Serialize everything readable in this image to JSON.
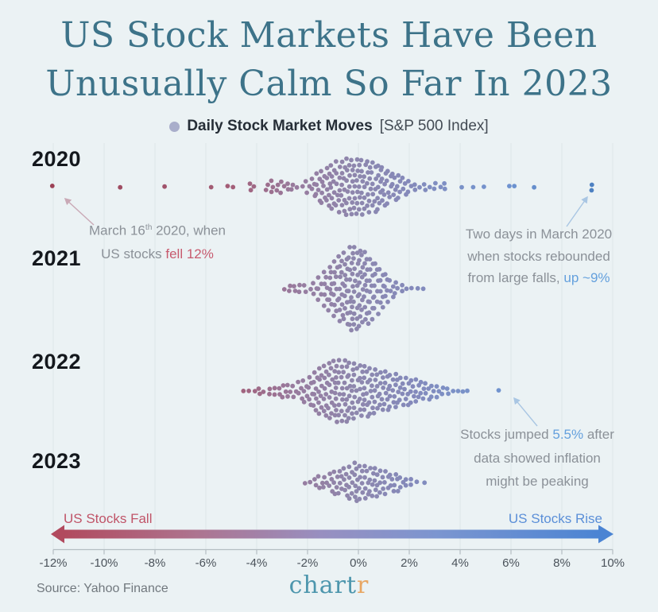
{
  "title": {
    "line1": "US Stock Markets Have Been",
    "line2": "Unusually Calm So Far In 2023",
    "color": "#3d7389"
  },
  "legend": {
    "label_bold": "Daily Stock Market Moves",
    "label_detail": "[S&P 500 Index]",
    "dot_color": "#a9aecb"
  },
  "annotations": {
    "march": {
      "line1_pre": "March 16",
      "line1_sup": "th",
      "line1_post": " 2020, when",
      "line2_pre": "US stocks ",
      "line2_em": "fell 12%",
      "em_color": "#c75a6e",
      "arrow_color": "#c9a9b6"
    },
    "rebound": {
      "line1": "Two days in March 2020",
      "line2": "when stocks rebounded",
      "line3_pre": "from large falls, ",
      "line3_em": "up ~9%",
      "em_color": "#64a0dd",
      "arrow_color": "#a9c6e3"
    },
    "inflation": {
      "line1_pre": "Stocks jumped ",
      "line1_em": "5.5%",
      "line1_post": " after",
      "line2": "data showed inflation",
      "line3": "might be peaking",
      "em_color": "#64a0dd",
      "arrow_color": "#a9c6e3"
    }
  },
  "flow": {
    "fall_label": "US Stocks Fall",
    "fall_color": "#c05468",
    "rise_label": "US Stocks Rise",
    "rise_color": "#5b8fd8",
    "gradient_stops": [
      [
        0,
        "#b14a5e"
      ],
      [
        0.25,
        "#ad7490"
      ],
      [
        0.48,
        "#988fc0"
      ],
      [
        0.7,
        "#7b95d0"
      ],
      [
        1,
        "#4b84d3"
      ]
    ]
  },
  "footer": {
    "source": "Source: Yahoo Finance",
    "logo_main": "chart",
    "logo_main_color": "#4d96ad",
    "logo_accent": "r",
    "logo_accent_color": "#e8a662"
  },
  "chart_data": {
    "type": "scatter",
    "variant": "beeswarm",
    "title": "Daily Stock Market Moves [S&P 500 Index]",
    "x_axis": {
      "min": -12,
      "max": 10,
      "tick_step": 2,
      "grid": true,
      "tick_values": [
        -12,
        -10,
        -8,
        -6,
        -4,
        -2,
        0,
        2,
        4,
        6,
        8,
        10
      ],
      "tick_labels": [
        "-12%",
        "-10%",
        "-8%",
        "-6%",
        "-4%",
        "-2%",
        "0%",
        "2%",
        "4%",
        "6%",
        "8%",
        "10%"
      ]
    },
    "color_scale_stops": [
      [
        -12,
        "#9c4156"
      ],
      [
        -5,
        "#a35e77"
      ],
      [
        -2.5,
        "#987b9e"
      ],
      [
        0,
        "#8d87ae"
      ],
      [
        2,
        "#8489ba"
      ],
      [
        4,
        "#7b92c8"
      ],
      [
        6,
        "#6e93d0"
      ],
      [
        9.5,
        "#4a7fc1"
      ]
    ],
    "rows": [
      {
        "label": "2020",
        "columns": [
          [
            -12,
            1
          ],
          [
            -9.4,
            1
          ],
          [
            -7.6,
            1
          ],
          [
            -5.8,
            1
          ],
          [
            -5.15,
            1
          ],
          [
            -4.9,
            1
          ],
          [
            -4.25,
            2
          ],
          [
            -4.1,
            1
          ],
          [
            -3.6,
            2
          ],
          [
            -3.4,
            3
          ],
          [
            -3.2,
            2
          ],
          [
            -3,
            3
          ],
          [
            -2.8,
            2
          ],
          [
            -2.6,
            2
          ],
          [
            -2.4,
            1
          ],
          [
            -2.2,
            1
          ],
          [
            -2,
            3
          ],
          [
            -1.8,
            4
          ],
          [
            -1.6,
            6
          ],
          [
            -1.4,
            7
          ],
          [
            -1.2,
            8
          ],
          [
            -1,
            9
          ],
          [
            -0.8,
            10
          ],
          [
            -0.6,
            10
          ],
          [
            -0.4,
            11
          ],
          [
            -0.2,
            11
          ],
          [
            0,
            11
          ],
          [
            0.2,
            11
          ],
          [
            0.4,
            10
          ],
          [
            0.6,
            10
          ],
          [
            0.8,
            9
          ],
          [
            1,
            8
          ],
          [
            1.2,
            7
          ],
          [
            1.4,
            6
          ],
          [
            1.6,
            5
          ],
          [
            1.8,
            4
          ],
          [
            2,
            3
          ],
          [
            2.2,
            2
          ],
          [
            2.4,
            1
          ],
          [
            2.6,
            2
          ],
          [
            2.8,
            1
          ],
          [
            3,
            2
          ],
          [
            3.2,
            1
          ],
          [
            3.4,
            2
          ],
          [
            4.1,
            1
          ],
          [
            4.55,
            1
          ],
          [
            4.9,
            1
          ],
          [
            5.9,
            1
          ],
          [
            6.15,
            1
          ],
          [
            6.9,
            1
          ],
          [
            9.2,
            2
          ]
        ]
      },
      {
        "label": "2021",
        "columns": [
          [
            -2.9,
            1
          ],
          [
            -2.7,
            2
          ],
          [
            -2.5,
            2
          ],
          [
            -2.3,
            2
          ],
          [
            -2.1,
            2
          ],
          [
            -1.9,
            1
          ],
          [
            -1.7,
            3
          ],
          [
            -1.5,
            5
          ],
          [
            -1.3,
            7
          ],
          [
            -1.1,
            9
          ],
          [
            -0.9,
            11
          ],
          [
            -0.7,
            13
          ],
          [
            -0.5,
            14
          ],
          [
            -0.3,
            16
          ],
          [
            -0.1,
            16
          ],
          [
            0.1,
            15
          ],
          [
            0.3,
            14
          ],
          [
            0.5,
            12
          ],
          [
            0.7,
            10
          ],
          [
            0.9,
            8
          ],
          [
            1.1,
            6
          ],
          [
            1.3,
            4
          ],
          [
            1.5,
            3
          ],
          [
            1.7,
            2
          ],
          [
            1.9,
            1
          ],
          [
            2.1,
            1
          ],
          [
            2.35,
            1
          ],
          [
            2.55,
            1
          ]
        ]
      },
      {
        "label": "2022",
        "columns": [
          [
            -4.5,
            1
          ],
          [
            -4.3,
            1
          ],
          [
            -4.1,
            1
          ],
          [
            -3.9,
            2
          ],
          [
            -3.7,
            1
          ],
          [
            -3.5,
            2
          ],
          [
            -3.3,
            2
          ],
          [
            -3.1,
            2
          ],
          [
            -2.9,
            3
          ],
          [
            -2.7,
            3
          ],
          [
            -2.5,
            3
          ],
          [
            -2.3,
            4
          ],
          [
            -2.1,
            5
          ],
          [
            -1.9,
            6
          ],
          [
            -1.7,
            8
          ],
          [
            -1.5,
            9
          ],
          [
            -1.3,
            10
          ],
          [
            -1.1,
            11
          ],
          [
            -0.9,
            12
          ],
          [
            -0.7,
            12
          ],
          [
            -0.5,
            12
          ],
          [
            -0.3,
            11
          ],
          [
            -0.1,
            11
          ],
          [
            0.1,
            10
          ],
          [
            0.3,
            10
          ],
          [
            0.5,
            9
          ],
          [
            0.7,
            9
          ],
          [
            0.9,
            8
          ],
          [
            1.1,
            8
          ],
          [
            1.3,
            7
          ],
          [
            1.5,
            7
          ],
          [
            1.7,
            6
          ],
          [
            1.9,
            6
          ],
          [
            2.1,
            5
          ],
          [
            2.3,
            5
          ],
          [
            2.5,
            4
          ],
          [
            2.7,
            4
          ],
          [
            2.9,
            3
          ],
          [
            3.1,
            3
          ],
          [
            3.3,
            2
          ],
          [
            3.5,
            2
          ],
          [
            3.7,
            1
          ],
          [
            3.9,
            1
          ],
          [
            4.1,
            1
          ],
          [
            4.3,
            1
          ],
          [
            5.5,
            1
          ]
        ]
      },
      {
        "label": "2023",
        "columns": [
          [
            -2.1,
            1
          ],
          [
            -1.9,
            1
          ],
          [
            -1.7,
            2
          ],
          [
            -1.5,
            3
          ],
          [
            -1.3,
            3
          ],
          [
            -1.1,
            4
          ],
          [
            -0.9,
            5
          ],
          [
            -0.7,
            5
          ],
          [
            -0.5,
            6
          ],
          [
            -0.3,
            7
          ],
          [
            -0.1,
            8
          ],
          [
            0.1,
            7
          ],
          [
            0.3,
            7
          ],
          [
            0.5,
            6
          ],
          [
            0.7,
            6
          ],
          [
            0.9,
            5
          ],
          [
            1.1,
            5
          ],
          [
            1.3,
            4
          ],
          [
            1.5,
            4
          ],
          [
            1.7,
            3
          ],
          [
            1.9,
            2
          ],
          [
            2.1,
            2
          ],
          [
            2.3,
            1
          ],
          [
            2.6,
            1
          ]
        ]
      }
    ]
  }
}
